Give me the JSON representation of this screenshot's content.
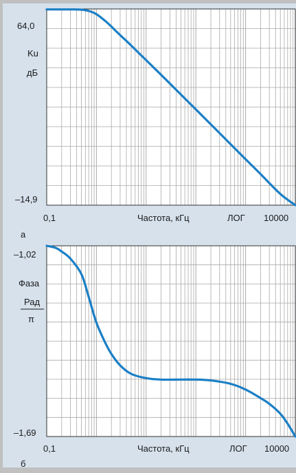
{
  "colors": {
    "background": "#d6e1ec",
    "plot_background": "#ffffff",
    "grid": "#a9a9a9",
    "frame": "#333333",
    "curve": "#1a7fc6"
  },
  "chart_data": [
    {
      "type": "line",
      "panel_label": "а",
      "x_scale": "log",
      "xlim": [
        0.1,
        10000
      ],
      "ylim": [
        -14.9,
        64.0
      ],
      "y_tick_labels": [
        "64,0",
        "–14,9"
      ],
      "x_tick_labels": [
        "0,1",
        "10000"
      ],
      "ylabel_lines": [
        "Ku",
        "дБ"
      ],
      "xlabel": "Частота, кГц",
      "scale_label": "ЛОГ",
      "grid": true,
      "series": [
        {
          "x": [
            0.1,
            0.2,
            0.35,
            0.5,
            0.7,
            1,
            1.5,
            2,
            3,
            5,
            10,
            20,
            50,
            100,
            200,
            500,
            1000,
            2000,
            5000,
            10000
          ],
          "y": [
            63.8,
            63.8,
            63.8,
            63.7,
            63.2,
            61.9,
            59.2,
            56.9,
            53.5,
            49.3,
            43.4,
            37.5,
            29.6,
            23.6,
            17.6,
            9.6,
            3.6,
            -2.4,
            -10.4,
            -14.9
          ]
        }
      ]
    },
    {
      "type": "line",
      "panel_label": "б",
      "x_scale": "log",
      "xlim": [
        0.1,
        10000
      ],
      "ylim": [
        -1.69,
        -1.02
      ],
      "y_tick_labels": [
        "–1,02",
        "–1,69"
      ],
      "x_tick_labels": [
        "0,1",
        "10000"
      ],
      "ylabel_lines": [
        "Фаза",
        "Рад",
        "π"
      ],
      "xlabel": "Частота, кГц",
      "scale_label": "ЛОГ",
      "grid": true,
      "series": [
        {
          "x": [
            0.1,
            0.15,
            0.2,
            0.3,
            0.5,
            0.7,
            1,
            1.5,
            2,
            3,
            5,
            10,
            20,
            50,
            100,
            200,
            500,
            1000,
            2000,
            3000,
            5000,
            7000,
            10000
          ],
          "y": [
            -1.02,
            -1.027,
            -1.04,
            -1.065,
            -1.12,
            -1.2,
            -1.29,
            -1.36,
            -1.4,
            -1.44,
            -1.47,
            -1.485,
            -1.49,
            -1.49,
            -1.49,
            -1.493,
            -1.505,
            -1.525,
            -1.555,
            -1.575,
            -1.61,
            -1.645,
            -1.69
          ]
        }
      ]
    }
  ]
}
